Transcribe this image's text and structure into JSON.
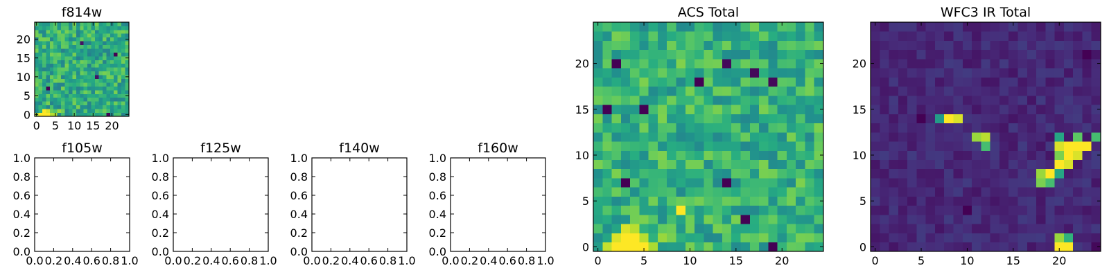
{
  "chart_data": [
    {
      "type": "heatmap",
      "title": "f814w",
      "xlim": [
        -0.5,
        24.5
      ],
      "ylim": [
        -0.5,
        24.5
      ],
      "xticks": [
        0,
        5,
        10,
        15,
        20
      ],
      "yticks": [
        0,
        5,
        10,
        15,
        20
      ],
      "colormap": "viridis",
      "grid": false,
      "seed": 11,
      "base": 0.62,
      "noise": 0.18,
      "hotspots": [
        {
          "x": 1,
          "y": 0,
          "v": 1.0
        },
        {
          "x": 2,
          "y": 0,
          "v": 1.0
        },
        {
          "x": 3,
          "y": 0,
          "v": 1.0
        },
        {
          "x": 2,
          "y": 1,
          "v": 1.0
        },
        {
          "x": 3,
          "y": 1,
          "v": 0.95
        },
        {
          "x": 4,
          "y": 0,
          "v": 0.9
        },
        {
          "x": 5,
          "y": 0,
          "v": 0.88
        },
        {
          "x": 6,
          "y": 1,
          "v": 0.85
        },
        {
          "x": 0,
          "y": 0,
          "v": 0.85
        }
      ],
      "lows": [
        {
          "x": 3,
          "y": 7,
          "v": 0.0
        },
        {
          "x": 21,
          "y": 16,
          "v": 0.0
        },
        {
          "x": 12,
          "y": 19,
          "v": 0.05
        },
        {
          "x": 16,
          "y": 10,
          "v": 0.05
        },
        {
          "x": 19,
          "y": 0,
          "v": 0.0
        }
      ]
    },
    {
      "type": "scatter",
      "title": "f105w",
      "xlim": [
        0.0,
        1.0
      ],
      "ylim": [
        0.0,
        1.0
      ],
      "xticks": [
        "0.0",
        "0.2",
        "0.4",
        "0.6",
        "0.8",
        "1.0"
      ],
      "yticks": [
        "0.0",
        "0.2",
        "0.4",
        "0.6",
        "0.8",
        "1.0"
      ],
      "values": []
    },
    {
      "type": "scatter",
      "title": "f125w",
      "xlim": [
        0.0,
        1.0
      ],
      "ylim": [
        0.0,
        1.0
      ],
      "xticks": [
        "0.0",
        "0.2",
        "0.4",
        "0.6",
        "0.8",
        "1.0"
      ],
      "yticks": [
        "0.0",
        "0.2",
        "0.4",
        "0.6",
        "0.8",
        "1.0"
      ],
      "values": []
    },
    {
      "type": "scatter",
      "title": "f140w",
      "xlim": [
        0.0,
        1.0
      ],
      "ylim": [
        0.0,
        1.0
      ],
      "xticks": [
        "0.0",
        "0.2",
        "0.4",
        "0.6",
        "0.8",
        "1.0"
      ],
      "yticks": [
        "0.0",
        "0.2",
        "0.4",
        "0.6",
        "0.8",
        "1.0"
      ],
      "values": []
    },
    {
      "type": "scatter",
      "title": "f160w",
      "xlim": [
        0.0,
        1.0
      ],
      "ylim": [
        0.0,
        1.0
      ],
      "xticks": [
        "0.0",
        "0.2",
        "0.4",
        "0.6",
        "0.8",
        "1.0"
      ],
      "yticks": [
        "0.0",
        "0.2",
        "0.4",
        "0.6",
        "0.8",
        "1.0"
      ],
      "values": []
    },
    {
      "type": "heatmap",
      "title": "ACS Total",
      "xlim": [
        -0.5,
        24.5
      ],
      "ylim": [
        -0.5,
        24.5
      ],
      "xticks": [
        0,
        5,
        10,
        15,
        20
      ],
      "yticks": [
        0,
        5,
        10,
        15,
        20
      ],
      "colormap": "viridis",
      "grid": false,
      "seed": 29,
      "base": 0.64,
      "noise": 0.17,
      "hotspots": [
        {
          "x": 2,
          "y": 0,
          "v": 1.0
        },
        {
          "x": 3,
          "y": 0,
          "v": 1.0
        },
        {
          "x": 4,
          "y": 0,
          "v": 1.0
        },
        {
          "x": 5,
          "y": 0,
          "v": 1.0
        },
        {
          "x": 3,
          "y": 1,
          "v": 1.0
        },
        {
          "x": 4,
          "y": 1,
          "v": 1.0
        },
        {
          "x": 2,
          "y": 1,
          "v": 0.95
        },
        {
          "x": 3,
          "y": 2,
          "v": 0.95
        },
        {
          "x": 5,
          "y": 1,
          "v": 0.9
        },
        {
          "x": 1,
          "y": 0,
          "v": 0.92
        },
        {
          "x": 6,
          "y": 0,
          "v": 0.88
        },
        {
          "x": 9,
          "y": 4,
          "v": 1.0
        },
        {
          "x": 7,
          "y": 1,
          "v": 0.85
        },
        {
          "x": 4,
          "y": 2,
          "v": 0.9
        }
      ],
      "lows": [
        {
          "x": 2,
          "y": 20,
          "v": 0.0
        },
        {
          "x": 1,
          "y": 15,
          "v": 0.0
        },
        {
          "x": 5,
          "y": 15,
          "v": 0.0
        },
        {
          "x": 3,
          "y": 7,
          "v": 0.0
        },
        {
          "x": 11,
          "y": 18,
          "v": 0.0
        },
        {
          "x": 14,
          "y": 20,
          "v": 0.02
        },
        {
          "x": 17,
          "y": 19,
          "v": 0.02
        },
        {
          "x": 19,
          "y": 18,
          "v": 0.02
        },
        {
          "x": 14,
          "y": 7,
          "v": 0.0
        },
        {
          "x": 16,
          "y": 3,
          "v": 0.0
        },
        {
          "x": 19,
          "y": 0,
          "v": 0.0
        }
      ]
    },
    {
      "type": "heatmap",
      "title": "WFC3 IR Total",
      "xlim": [
        -0.5,
        24.5
      ],
      "ylim": [
        -0.5,
        24.5
      ],
      "xticks": [
        0,
        5,
        10,
        15,
        20
      ],
      "yticks": [
        0,
        5,
        10,
        15,
        20
      ],
      "colormap": "viridis",
      "grid": false,
      "seed": 47,
      "base": 0.12,
      "noise": 0.06,
      "hotspots": [
        {
          "x": 8,
          "y": 14,
          "v": 1.0
        },
        {
          "x": 9,
          "y": 14,
          "v": 0.95
        },
        {
          "x": 7,
          "y": 14,
          "v": 0.55
        },
        {
          "x": 11,
          "y": 12,
          "v": 0.85
        },
        {
          "x": 12,
          "y": 12,
          "v": 0.9
        },
        {
          "x": 12,
          "y": 11,
          "v": 0.7
        },
        {
          "x": 21,
          "y": 11,
          "v": 1.0
        },
        {
          "x": 22,
          "y": 11,
          "v": 1.0
        },
        {
          "x": 23,
          "y": 11,
          "v": 1.0
        },
        {
          "x": 20,
          "y": 11,
          "v": 0.95
        },
        {
          "x": 21,
          "y": 10,
          "v": 1.0
        },
        {
          "x": 22,
          "y": 10,
          "v": 0.95
        },
        {
          "x": 20,
          "y": 9,
          "v": 1.0
        },
        {
          "x": 21,
          "y": 9,
          "v": 0.95
        },
        {
          "x": 22,
          "y": 12,
          "v": 0.75
        },
        {
          "x": 24,
          "y": 12,
          "v": 0.7
        },
        {
          "x": 20,
          "y": 12,
          "v": 0.6
        },
        {
          "x": 20,
          "y": 10,
          "v": 0.8
        },
        {
          "x": 19,
          "y": 8,
          "v": 1.0
        },
        {
          "x": 18,
          "y": 8,
          "v": 0.85
        },
        {
          "x": 18,
          "y": 7,
          "v": 0.8
        },
        {
          "x": 19,
          "y": 7,
          "v": 0.7
        },
        {
          "x": 20,
          "y": 8,
          "v": 0.6
        },
        {
          "x": 20,
          "y": 1,
          "v": 0.85
        },
        {
          "x": 20,
          "y": 0,
          "v": 1.0
        },
        {
          "x": 21,
          "y": 0,
          "v": 1.0
        },
        {
          "x": 21,
          "y": 1,
          "v": 0.65
        }
      ],
      "lows": [
        {
          "x": 5,
          "y": 14,
          "v": 0.0
        },
        {
          "x": 10,
          "y": 4,
          "v": 0.0
        },
        {
          "x": 23,
          "y": 21,
          "v": 0.0
        },
        {
          "x": 24,
          "y": 0,
          "v": 0.02
        }
      ]
    }
  ]
}
